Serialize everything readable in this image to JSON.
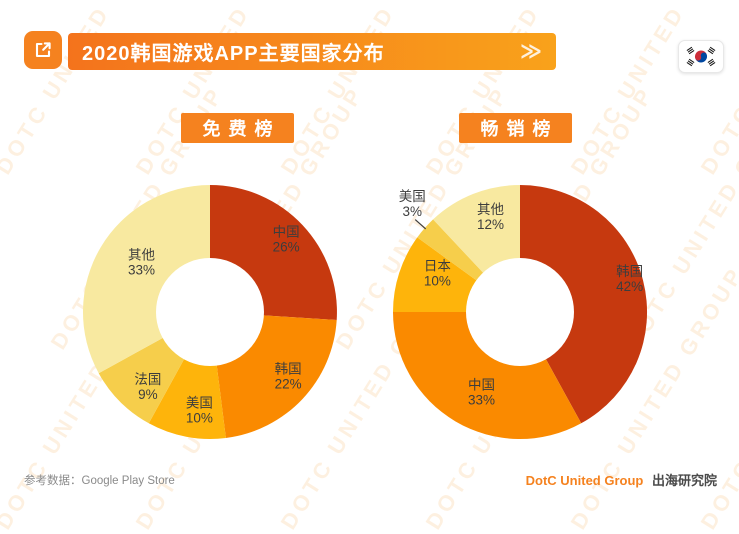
{
  "header": {
    "title": "2020韩国游戏APP主要国家分布",
    "chevrons": "≫",
    "share_icon": "export-arrow-icon",
    "flag_icon": "south-korea-flag"
  },
  "watermark": {
    "text": "DOTC UNITED GROUP"
  },
  "chart_data": [
    {
      "type": "pie",
      "donut": true,
      "title": "免费榜",
      "unit": "%",
      "categories": [
        "中国",
        "韩国",
        "美国",
        "法国",
        "其他"
      ],
      "values": [
        26,
        22,
        10,
        9,
        33
      ],
      "colors": [
        "#C6390F",
        "#FA8A00",
        "#FEB40B",
        "#F6CE4B",
        "#F8E9A0"
      ],
      "labels": "name-and-percent-on-slice",
      "start_angle": "12-oclock-clockwise"
    },
    {
      "type": "pie",
      "donut": true,
      "title": "畅销榜",
      "unit": "%",
      "categories": [
        "韩国",
        "中国",
        "日本",
        "美国",
        "其他"
      ],
      "values": [
        42,
        33,
        10,
        3,
        12
      ],
      "colors": [
        "#C6390F",
        "#FA8A00",
        "#FEB40B",
        "#F6CE4B",
        "#F8E9A0"
      ],
      "labels": "name-and-percent-on-slice",
      "leader_line_category": "美国",
      "start_angle": "12-oclock-clockwise"
    }
  ],
  "footer": {
    "source": "参考数据：Google Play Store",
    "brand": "DotC United Group",
    "org": "出海研究院"
  }
}
